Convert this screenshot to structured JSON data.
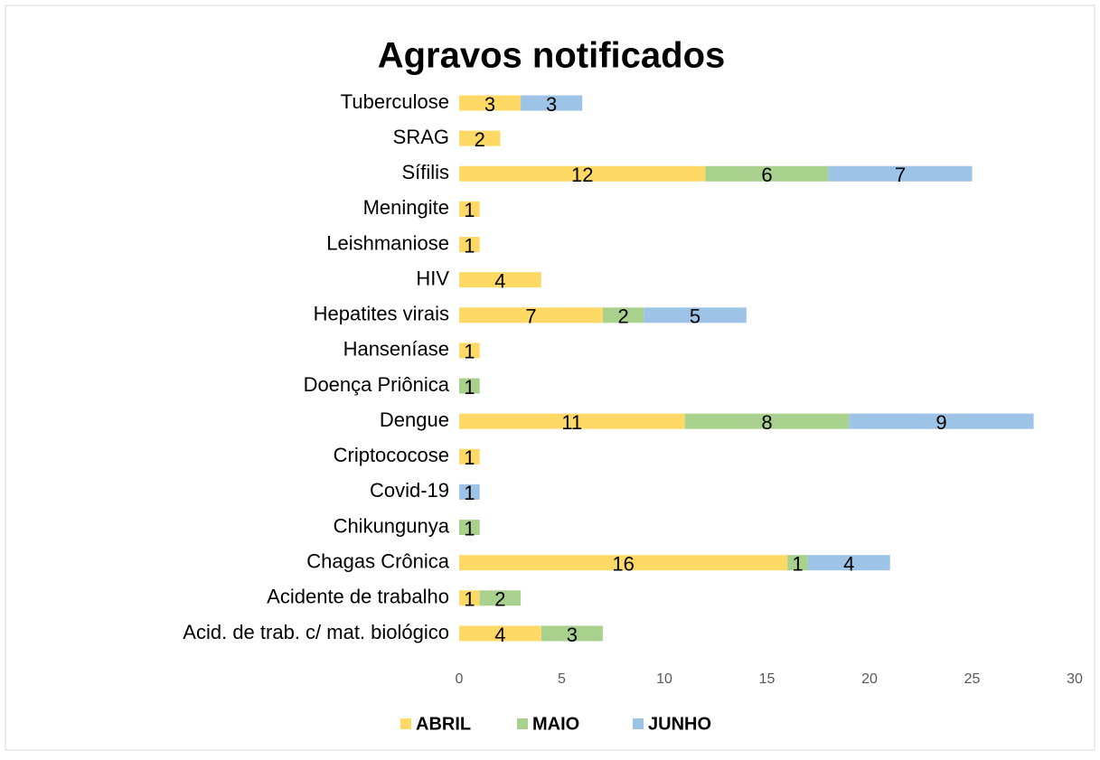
{
  "chart_data": {
    "type": "stacked_bar_horizontal",
    "title": "Agravos notificados",
    "categories": [
      "Tuberculose",
      "SRAG",
      "Sífilis",
      "Meningite",
      "Leishmaniose",
      "HIV",
      "Hepatites virais",
      "Hanseníase",
      "Doença Priônica",
      "Dengue",
      "Criptococose",
      "Covid-19",
      "Chikungunya",
      "Chagas Crônica",
      "Acidente de trabalho",
      "Acid. de trab. c/ mat. biológico"
    ],
    "series": [
      {
        "name": "ABRIL",
        "color": "#ffd966",
        "values": [
          3,
          2,
          12,
          1,
          1,
          4,
          7,
          1,
          null,
          11,
          1,
          null,
          null,
          16,
          1,
          4
        ]
      },
      {
        "name": "MAIO",
        "color": "#a9d18e",
        "values": [
          null,
          null,
          6,
          null,
          null,
          null,
          2,
          null,
          1,
          8,
          null,
          null,
          1,
          1,
          2,
          3
        ]
      },
      {
        "name": "JUNHO",
        "color": "#9dc3e6",
        "values": [
          3,
          null,
          7,
          null,
          null,
          null,
          5,
          null,
          null,
          9,
          null,
          1,
          null,
          4,
          null,
          null
        ]
      }
    ],
    "xlim": [
      0,
      30
    ],
    "xticks": [
      0,
      5,
      10,
      15,
      20,
      25,
      30
    ],
    "grid": false,
    "legend": "bottom"
  }
}
